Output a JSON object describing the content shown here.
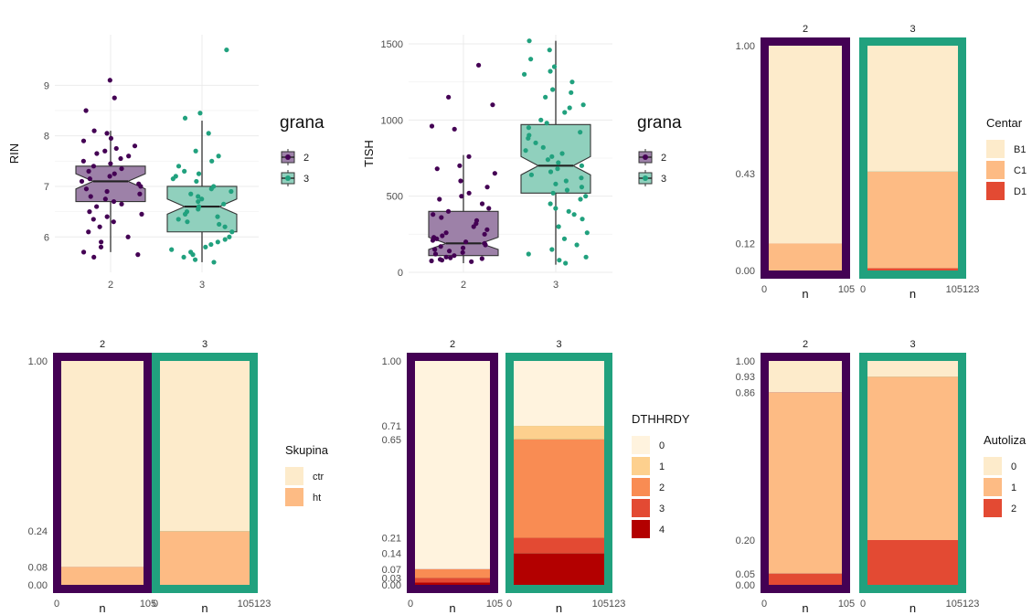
{
  "colors": {
    "purple": "#440154",
    "green": "#21A17E",
    "purple_fill": "#9D81A8",
    "green_fill": "#90D0BD",
    "grid": "#EBEBEB",
    "orange": [
      "#FDEBCB",
      "#FDBB84",
      "#E34A33",
      "#B30000",
      "#FFF3DE",
      "#FDD08E",
      "#F98C53"
    ]
  },
  "chart_data": [
    {
      "type": "boxplot",
      "ylabel": "RIN",
      "categories": [
        "2",
        "3"
      ],
      "yticks": [
        6,
        7,
        8,
        9
      ],
      "ylim": [
        5.3,
        10.0
      ],
      "xtick_labels": [
        "2",
        "3"
      ],
      "legend": {
        "title": "grana",
        "entries": [
          "2",
          "3"
        ]
      },
      "boxes": [
        {
          "group": "2",
          "q1": 6.7,
          "median": 7.1,
          "q3": 7.4,
          "notch_low": 6.95,
          "notch_high": 7.25,
          "whisker_low": 5.7,
          "whisker_high": 8.1
        },
        {
          "group": "3",
          "q1": 6.1,
          "median": 6.6,
          "q3": 7.0,
          "notch_low": 6.45,
          "notch_high": 6.75,
          "whisker_low": 5.5,
          "whisker_high": 8.3
        }
      ],
      "points_estimated": [
        {
          "group": "2",
          "values": [
            9.1,
            8.75,
            8.5,
            8.1,
            8.05,
            7.95,
            7.9,
            7.8,
            7.75,
            7.7,
            7.65,
            7.6,
            7.55,
            7.5,
            7.45,
            7.4,
            7.35,
            7.3,
            7.25,
            7.2,
            7.15,
            7.1,
            7.05,
            7.0,
            6.95,
            6.9,
            6.85,
            6.8,
            6.75,
            6.7,
            6.65,
            6.6,
            6.5,
            6.45,
            6.4,
            6.35,
            6.3,
            6.2,
            6.1,
            6.0,
            5.9,
            5.8,
            5.7,
            5.65,
            5.6
          ]
        },
        {
          "group": "3",
          "values": [
            9.7,
            8.45,
            8.35,
            8.05,
            7.7,
            7.6,
            7.5,
            7.4,
            7.3,
            7.25,
            7.2,
            7.15,
            7.1,
            7.0,
            6.95,
            6.9,
            6.85,
            6.8,
            6.75,
            6.7,
            6.65,
            6.6,
            6.55,
            6.5,
            6.45,
            6.4,
            6.35,
            6.3,
            6.25,
            6.2,
            6.1,
            6.0,
            5.95,
            5.9,
            5.85,
            5.8,
            5.75,
            5.7,
            5.65,
            5.6,
            5.55,
            5.5
          ]
        }
      ]
    },
    {
      "type": "boxplot",
      "ylabel": "TISH",
      "categories": [
        "2",
        "3"
      ],
      "yticks": [
        0,
        500,
        1000,
        1500
      ],
      "ylim": [
        0,
        1560
      ],
      "xtick_labels": [
        "2",
        "3"
      ],
      "legend": {
        "title": "grana",
        "entries": [
          "2",
          "3"
        ]
      },
      "boxes": [
        {
          "group": "2",
          "q1": 110,
          "median": 190,
          "q3": 400,
          "notch_low": 150,
          "notch_high": 230,
          "whisker_low": 60,
          "whisker_high": 770
        },
        {
          "group": "3",
          "q1": 520,
          "median": 700,
          "q3": 970,
          "notch_low": 640,
          "notch_high": 760,
          "whisker_low": 50,
          "whisker_high": 1520
        }
      ],
      "points_estimated": [
        {
          "group": "2",
          "values": [
            1360,
            1150,
            1100,
            960,
            940,
            760,
            700,
            680,
            650,
            600,
            560,
            520,
            500,
            480,
            450,
            420,
            400,
            380,
            360,
            340,
            320,
            300,
            280,
            260,
            250,
            240,
            230,
            220,
            210,
            200,
            190,
            180,
            170,
            160,
            150,
            140,
            130,
            120,
            110,
            100,
            95,
            90,
            85,
            80,
            75,
            70
          ]
        },
        {
          "group": "3",
          "values": [
            1520,
            1460,
            1400,
            1350,
            1320,
            1300,
            1250,
            1200,
            1180,
            1150,
            1100,
            1080,
            1050,
            1000,
            980,
            950,
            920,
            900,
            880,
            850,
            820,
            800,
            780,
            760,
            740,
            720,
            700,
            680,
            660,
            640,
            620,
            600,
            580,
            560,
            540,
            520,
            500,
            480,
            450,
            420,
            400,
            380,
            350,
            300,
            260,
            220,
            180,
            150,
            120,
            100,
            80,
            60
          ]
        }
      ]
    },
    {
      "type": "stacked_bar_proportion",
      "facets": [
        "2",
        "3"
      ],
      "xlabel": "n",
      "xtick_labels": [
        [
          "0",
          "105"
        ],
        [
          "0",
          "105123"
        ]
      ],
      "ytick_labels": [
        "0.00",
        "0.12",
        "0.43",
        "1.00"
      ],
      "yticks": [
        0,
        0.12,
        0.43,
        1.0
      ],
      "legend": {
        "title": "Centar",
        "entries": [
          "B1",
          "C1",
          "D1"
        ]
      },
      "series": [
        {
          "name": "B1",
          "values": [
            0.88,
            0.56
          ]
        },
        {
          "name": "C1",
          "values": [
            0.12,
            0.43
          ]
        },
        {
          "name": "D1",
          "values": [
            0.0,
            0.01
          ]
        }
      ]
    },
    {
      "type": "stacked_bar_proportion",
      "facets": [
        "2",
        "3"
      ],
      "xlabel": "n",
      "xtick_labels": [
        [
          "0",
          "105"
        ],
        [
          "0",
          "105123"
        ]
      ],
      "ytick_labels": [
        "0.00",
        "0.08",
        "0.24",
        "1.00"
      ],
      "yticks": [
        0,
        0.08,
        0.24,
        1.0
      ],
      "legend": {
        "title": "Skupina",
        "entries": [
          "ctr",
          "ht"
        ]
      },
      "series": [
        {
          "name": "ctr",
          "values": [
            0.92,
            0.76
          ]
        },
        {
          "name": "ht",
          "values": [
            0.08,
            0.24
          ]
        }
      ]
    },
    {
      "type": "stacked_bar_proportion",
      "facets": [
        "2",
        "3"
      ],
      "xlabel": "n",
      "xtick_labels": [
        [
          "0",
          "105"
        ],
        [
          "0",
          "105123"
        ]
      ],
      "ytick_labels": [
        "0.00",
        "0.03",
        "0.07",
        "0.14",
        "0.21",
        "0.65",
        "0.71",
        "1.00"
      ],
      "yticks": [
        0,
        0.03,
        0.07,
        0.14,
        0.21,
        0.65,
        0.71,
        1.0
      ],
      "legend": {
        "title": "DTHHRDY",
        "entries": [
          "0",
          "1",
          "2",
          "3",
          "4"
        ]
      },
      "series": [
        {
          "name": "0",
          "values": [
            0.93,
            0.29
          ]
        },
        {
          "name": "1",
          "values": [
            0.0,
            0.06
          ]
        },
        {
          "name": "2",
          "values": [
            0.04,
            0.44
          ]
        },
        {
          "name": "3",
          "values": [
            0.02,
            0.07
          ]
        },
        {
          "name": "4",
          "values": [
            0.01,
            0.14
          ]
        }
      ]
    },
    {
      "type": "stacked_bar_proportion",
      "facets": [
        "2",
        "3"
      ],
      "xlabel": "n",
      "xtick_labels": [
        [
          "0",
          "105"
        ],
        [
          "0",
          "105123"
        ]
      ],
      "ytick_labels": [
        "0.00",
        "0.05",
        "0.20",
        "0.86",
        "0.93",
        "1.00"
      ],
      "yticks": [
        0,
        0.05,
        0.2,
        0.86,
        0.93,
        1.0
      ],
      "legend": {
        "title": "Autoliza",
        "entries": [
          "0",
          "1",
          "2"
        ]
      },
      "series": [
        {
          "name": "0",
          "values": [
            0.14,
            0.07
          ]
        },
        {
          "name": "1",
          "values": [
            0.81,
            0.73
          ]
        },
        {
          "name": "2",
          "values": [
            0.05,
            0.2
          ]
        }
      ]
    }
  ]
}
